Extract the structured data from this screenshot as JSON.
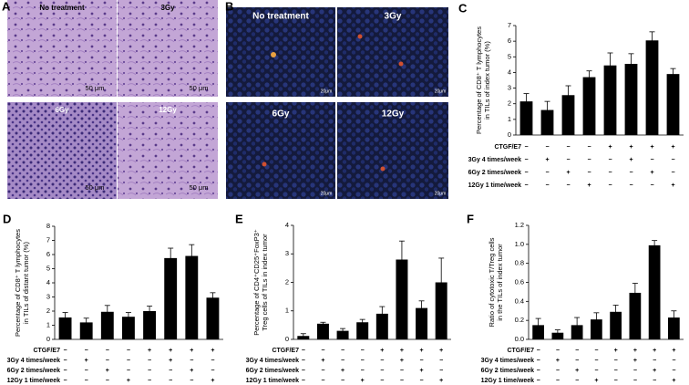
{
  "panels": [
    {
      "letter": "A",
      "images": [
        {
          "label": "No treatment",
          "scale": "50 μm"
        },
        {
          "label": "3Gy",
          "scale": "50 μm"
        },
        {
          "label": "6Gy",
          "scale": "50 μm"
        },
        {
          "label": "12Gy",
          "scale": "50 μm"
        }
      ]
    },
    {
      "letter": "B",
      "images": [
        {
          "label": "No treatment",
          "scale": "20μm"
        },
        {
          "label": "3Gy",
          "scale": "20μm"
        },
        {
          "label": "6Gy",
          "scale": "20μm"
        },
        {
          "label": "12Gy",
          "scale": "20μm"
        }
      ]
    }
  ],
  "chart_data": [
    {
      "type": "bar",
      "panel": "C",
      "ylabel": [
        "Percentage of CD8⁺ T lymphocytes",
        "in TILs of index tumor (%)"
      ],
      "values": [
        2.15,
        1.6,
        2.55,
        3.7,
        4.45,
        4.55,
        6.05,
        3.9
      ],
      "errors": [
        0.5,
        0.55,
        0.6,
        0.4,
        0.8,
        0.65,
        0.55,
        0.35
      ],
      "color": "#000000",
      "ylim": [
        0,
        7
      ],
      "yticks": [
        0,
        1,
        2,
        3,
        4,
        5,
        6,
        7
      ],
      "treatments": [
        {
          "name": "CTGF/E7",
          "signs": [
            "−",
            "−",
            "−",
            "−",
            "+",
            "+",
            "+",
            "+"
          ]
        },
        {
          "name": "3Gy 4 times/week",
          "signs": [
            "−",
            "+",
            "−",
            "−",
            "−",
            "+",
            "−",
            "−"
          ]
        },
        {
          "name": "6Gy 2 times/week",
          "signs": [
            "−",
            "−",
            "+",
            "−",
            "−",
            "−",
            "+",
            "−"
          ]
        },
        {
          "name": "12Gy 1 time/week",
          "signs": [
            "−",
            "−",
            "−",
            "+",
            "−",
            "−",
            "−",
            "+"
          ]
        }
      ]
    },
    {
      "type": "bar",
      "panel": "D",
      "ylabel": [
        "Percentage of CD8⁺ T lymphocytes",
        "in TILs of distant tumor (%)"
      ],
      "values": [
        1.55,
        1.2,
        1.95,
        1.6,
        2.0,
        5.75,
        5.9,
        2.95
      ],
      "errors": [
        0.35,
        0.3,
        0.45,
        0.3,
        0.35,
        0.7,
        0.8,
        0.35
      ],
      "color": "#000000",
      "ylim": [
        0,
        8
      ],
      "yticks": [
        0,
        1,
        2,
        3,
        4,
        5,
        6,
        7,
        8
      ],
      "treatments": [
        {
          "name": "CTGF/E7",
          "signs": [
            "−",
            "−",
            "−",
            "−",
            "+",
            "+",
            "+",
            "+"
          ]
        },
        {
          "name": "3Gy 4 times/week",
          "signs": [
            "−",
            "+",
            "−",
            "−",
            "−",
            "+",
            "−",
            "−"
          ]
        },
        {
          "name": "6Gy 2 times/week",
          "signs": [
            "−",
            "−",
            "+",
            "−",
            "−",
            "−",
            "+",
            "−"
          ]
        },
        {
          "name": "12Gy 1 time/week",
          "signs": [
            "−",
            "−",
            "−",
            "+",
            "−",
            "−",
            "−",
            "+"
          ]
        }
      ]
    },
    {
      "type": "bar",
      "panel": "E",
      "ylabel": [
        "Percentage of CD4⁺CD25⁺FoxP3⁺",
        "Treg cells of TILs in index tumor"
      ],
      "values": [
        0.12,
        0.55,
        0.3,
        0.6,
        0.9,
        2.8,
        1.1,
        2.0
      ],
      "errors": [
        0.08,
        0.05,
        0.08,
        0.1,
        0.25,
        0.65,
        0.25,
        0.85
      ],
      "color": "#000000",
      "ylim": [
        0,
        4
      ],
      "yticks": [
        0,
        1,
        2,
        3,
        4
      ],
      "treatments": [
        {
          "name": "CTGF/E7",
          "signs": [
            "−",
            "−",
            "−",
            "−",
            "+",
            "+",
            "+",
            "+"
          ]
        },
        {
          "name": "3Gy 4 times/week",
          "signs": [
            "−",
            "+",
            "−",
            "−",
            "−",
            "+",
            "−",
            "−"
          ]
        },
        {
          "name": "6Gy 2 times/week",
          "signs": [
            "−",
            "−",
            "+",
            "−",
            "−",
            "−",
            "+",
            "−"
          ]
        },
        {
          "name": "12Gy 1 time/week",
          "signs": [
            "−",
            "−",
            "−",
            "+",
            "−",
            "−",
            "−",
            "+"
          ]
        }
      ]
    },
    {
      "type": "bar",
      "panel": "F",
      "ylabel": [
        "Ratio of cytotoxic T/Treg cells",
        "in the TILs of index tumor"
      ],
      "values": [
        0.15,
        0.07,
        0.15,
        0.21,
        0.29,
        0.49,
        0.99,
        0.23
      ],
      "errors": [
        0.07,
        0.03,
        0.08,
        0.07,
        0.07,
        0.1,
        0.05,
        0.07
      ],
      "color": "#000000",
      "ylim": [
        0,
        1.2
      ],
      "yticks": [
        {
          "value": 0,
          "label": "0.0"
        },
        0.2,
        0.4,
        0.6,
        0.8,
        {
          "value": 1,
          "label": "1.0"
        },
        1.2
      ],
      "treatments": [
        {
          "name": "CTGF/E7",
          "signs": [
            "−",
            "−",
            "−",
            "−",
            "+",
            "+",
            "+",
            "+"
          ]
        },
        {
          "name": "3Gy 4 times/week",
          "signs": [
            "−",
            "+",
            "−",
            "−",
            "−",
            "+",
            "−",
            "−"
          ]
        },
        {
          "name": "6Gy 2 times/week",
          "signs": [
            "−",
            "−",
            "+",
            "−",
            "−",
            "−",
            "+",
            "−"
          ]
        },
        {
          "name": "12Gy 1 time/week",
          "signs": [
            "−",
            "−",
            "−",
            "+",
            "−",
            "−",
            "−",
            "+"
          ]
        }
      ]
    }
  ]
}
